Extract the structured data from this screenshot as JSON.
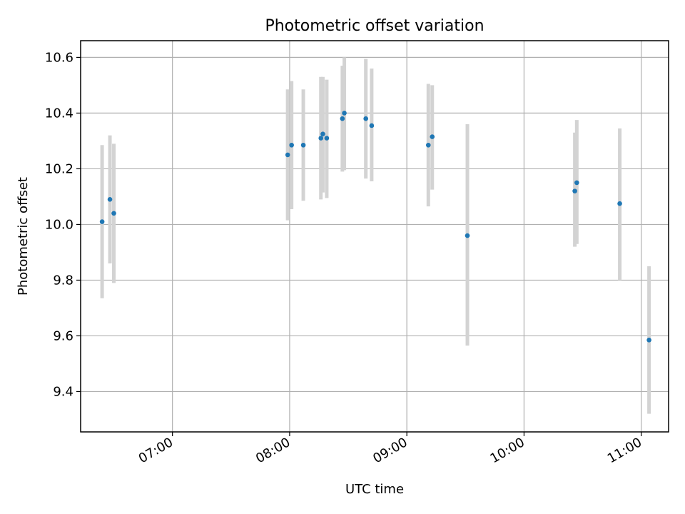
{
  "chart_data": {
    "type": "scatter",
    "title": "Photometric offset variation",
    "xlabel": "UTC time",
    "ylabel": "Photometric offset",
    "x_axis": {
      "type": "time",
      "range": [
        "06:13",
        "11:14"
      ],
      "ticks": [
        "07:00",
        "08:00",
        "09:00",
        "10:00",
        "11:00"
      ]
    },
    "y_axis": {
      "range": [
        9.255,
        10.66
      ],
      "ticks": [
        "9.4",
        "9.6",
        "9.8",
        "10.0",
        "10.2",
        "10.4",
        "10.6"
      ]
    },
    "grid": true,
    "colors": {
      "points": "#1f77b4",
      "error_bars": "#d3d3d3"
    },
    "points": [
      {
        "x": "06:24",
        "y": 10.01,
        "err_low": 9.735,
        "err_high": 10.285
      },
      {
        "x": "06:28",
        "y": 10.09,
        "err_low": 9.86,
        "err_high": 10.32
      },
      {
        "x": "06:30",
        "y": 10.04,
        "err_low": 9.79,
        "err_high": 10.29
      },
      {
        "x": "07:59",
        "y": 10.25,
        "err_low": 10.015,
        "err_high": 10.485
      },
      {
        "x": "08:01",
        "y": 10.285,
        "err_low": 10.055,
        "err_high": 10.515
      },
      {
        "x": "08:07",
        "y": 10.285,
        "err_low": 10.085,
        "err_high": 10.485
      },
      {
        "x": "08:16",
        "y": 10.31,
        "err_low": 10.09,
        "err_high": 10.53
      },
      {
        "x": "08:17",
        "y": 10.325,
        "err_low": 10.115,
        "err_high": 10.53
      },
      {
        "x": "08:19",
        "y": 10.31,
        "err_low": 10.095,
        "err_high": 10.52
      },
      {
        "x": "08:27",
        "y": 10.38,
        "err_low": 10.19,
        "err_high": 10.57
      },
      {
        "x": "08:28",
        "y": 10.4,
        "err_low": 10.195,
        "err_high": 10.6
      },
      {
        "x": "08:39",
        "y": 10.38,
        "err_low": 10.165,
        "err_high": 10.595
      },
      {
        "x": "08:42",
        "y": 10.355,
        "err_low": 10.155,
        "err_high": 10.56
      },
      {
        "x": "09:11",
        "y": 10.285,
        "err_low": 10.065,
        "err_high": 10.505
      },
      {
        "x": "09:13",
        "y": 10.315,
        "err_low": 10.125,
        "err_high": 10.5
      },
      {
        "x": "09:31",
        "y": 9.96,
        "err_low": 9.565,
        "err_high": 10.36
      },
      {
        "x": "10:26",
        "y": 10.12,
        "err_low": 9.92,
        "err_high": 10.33
      },
      {
        "x": "10:27",
        "y": 10.15,
        "err_low": 9.93,
        "err_high": 10.375
      },
      {
        "x": "10:49",
        "y": 10.075,
        "err_low": 9.8,
        "err_high": 10.345
      },
      {
        "x": "11:04",
        "y": 9.585,
        "err_low": 9.32,
        "err_high": 9.85
      }
    ]
  }
}
